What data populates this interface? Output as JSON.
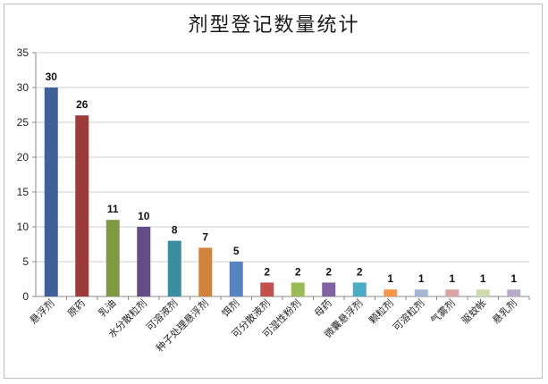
{
  "chart_data": {
    "type": "bar",
    "title": "剂型登记数量统计",
    "xlabel": "",
    "ylabel": "",
    "ylim": [
      0,
      35
    ],
    "yticks": [
      0,
      5,
      10,
      15,
      20,
      25,
      30,
      35
    ],
    "grid": true,
    "legend": "none",
    "categories": [
      "悬浮剂",
      "原药",
      "乳油",
      "水分散粒剂",
      "可溶液剂",
      "种子处理悬浮剂",
      "饵剂",
      "可分散液剂",
      "可湿性粉剂",
      "母药",
      "微囊悬浮剂",
      "颗粒剂",
      "可溶粒剂",
      "气雾剂",
      "驱蚊帐",
      "悬乳剂"
    ],
    "values": [
      30,
      26,
      11,
      10,
      8,
      7,
      5,
      2,
      2,
      2,
      2,
      1,
      1,
      1,
      1,
      1
    ],
    "colors": [
      "#3e6198",
      "#9b3c3a",
      "#7e9a43",
      "#624d86",
      "#3a8ea0",
      "#d1833c",
      "#5783c3",
      "#c4504d",
      "#9bba58",
      "#8064a2",
      "#4bacc6",
      "#f79646",
      "#a5b5d6",
      "#d8a5a4",
      "#cfdbaa",
      "#b7abc9"
    ]
  }
}
